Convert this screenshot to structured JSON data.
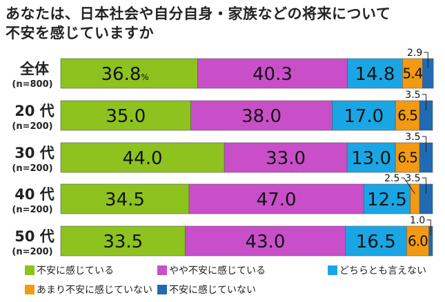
{
  "chart_data": {
    "type": "bar",
    "orientation": "horizontal",
    "stacked": true,
    "title": "あなたは、日本社会や自分自身・家族などの将来について不安を感じていますか",
    "title_lines": [
      "あなたは、日本社会や自分自身・家族などの将来について",
      "不安を感じていますか"
    ],
    "unit": "%",
    "xlim": [
      0,
      100
    ],
    "grid": false,
    "legend_placement": "bottom",
    "categories": [
      {
        "label": "全体",
        "n": "(n=800)"
      },
      {
        "label": "20 代",
        "n": "(n=200)"
      },
      {
        "label": "30 代",
        "n": "(n=200)"
      },
      {
        "label": "40 代",
        "n": "(n=200)"
      },
      {
        "label": "50 代",
        "n": "(n=200)"
      }
    ],
    "series": [
      {
        "name": "不安に感じている",
        "color": "#8dc21f",
        "values": [
          36.8,
          35.0,
          44.0,
          34.5,
          33.5
        ]
      },
      {
        "name": "やや不安に感じている",
        "color": "#c94fc8",
        "values": [
          40.3,
          38.0,
          33.0,
          47.0,
          43.0
        ]
      },
      {
        "name": "どちらとも言えない",
        "color": "#1aa6e4",
        "values": [
          14.8,
          17.0,
          13.0,
          12.5,
          16.5
        ]
      },
      {
        "name": "あまり不安に感じていない",
        "color": "#f39a12",
        "values": [
          5.4,
          6.5,
          6.5,
          2.5,
          6.0
        ]
      },
      {
        "name": "不安に感じていない",
        "color": "#1f6cb5",
        "values": [
          2.9,
          3.5,
          3.5,
          3.5,
          1.0
        ]
      }
    ],
    "value_labels": [
      [
        "36.8",
        "40.3",
        "14.8",
        "5.4",
        "2.9"
      ],
      [
        "35.0",
        "38.0",
        "17.0",
        "6.5",
        "3.5"
      ],
      [
        "44.0",
        "33.0",
        "13.0",
        "6.5",
        "3.5"
      ],
      [
        "34.5",
        "47.0",
        "12.5",
        "2.5",
        "3.5"
      ],
      [
        "33.5",
        "43.0",
        "16.5",
        "6.0",
        "1.0"
      ]
    ]
  }
}
